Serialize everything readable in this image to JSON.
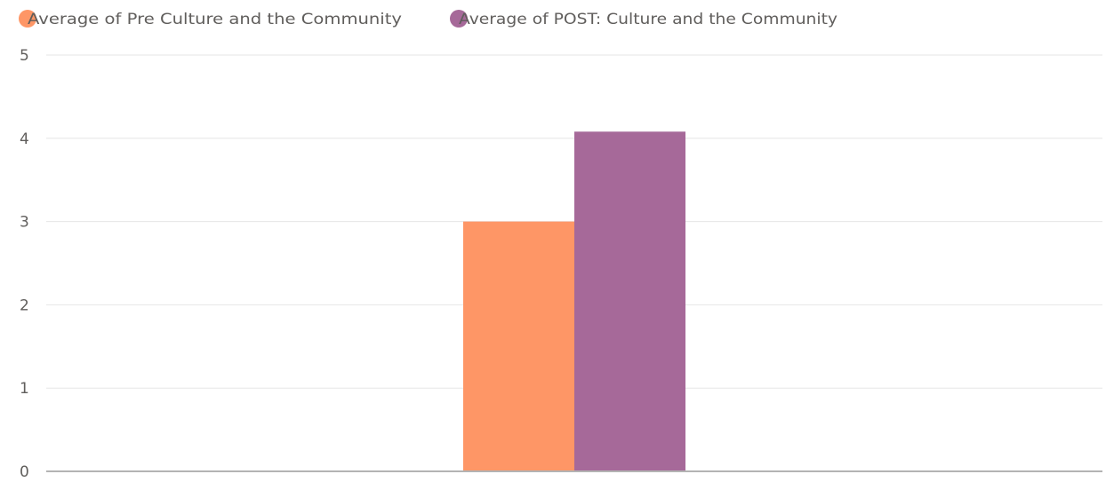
{
  "chart_data": {
    "type": "bar",
    "categories": [
      ""
    ],
    "series": [
      {
        "name": "Average of Pre Culture and the Community",
        "values": [
          3.0
        ],
        "color": "#FE9666"
      },
      {
        "name": "Average of POST: Culture and the Community",
        "values": [
          4.08
        ],
        "color": "#A66999"
      }
    ],
    "ylim": [
      0,
      5
    ],
    "yticks": [
      0,
      1,
      2,
      3,
      4,
      5
    ],
    "grid": true,
    "legend_position": "top-left",
    "title": "",
    "xlabel": "",
    "ylabel": ""
  },
  "colors": {
    "gridline": "#e6e6e6",
    "axis_line": "#b3b3b3",
    "text": "#605e5c"
  }
}
